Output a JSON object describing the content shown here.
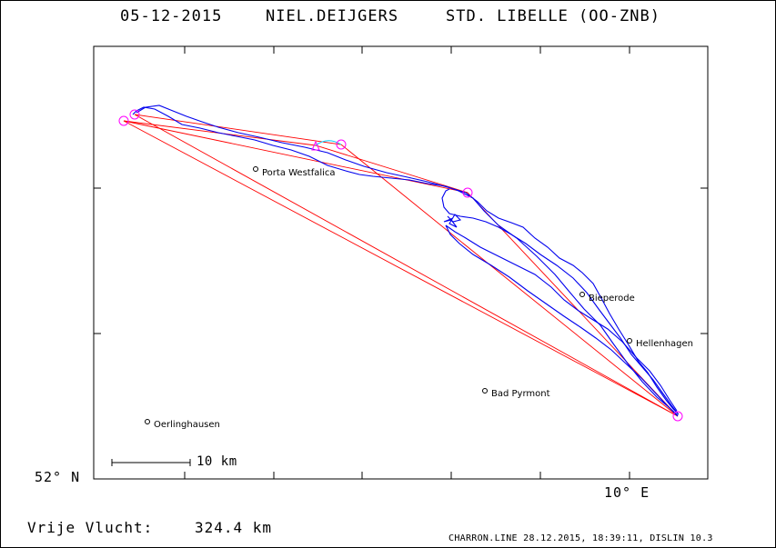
{
  "header": {
    "date": "05-12-2015",
    "pilot": "NIEL.DEIJGERS",
    "glider": "STD. LIBELLE (OO-ZNB)"
  },
  "axes": {
    "lat_label": "52° N",
    "lon_label": "10° E"
  },
  "places": [
    {
      "name": "Porta Westfalica"
    },
    {
      "name": "Bieperode"
    },
    {
      "name": "Hellenhagen"
    },
    {
      "name": "Bad Pyrmont"
    },
    {
      "name": "Oerlinghausen"
    }
  ],
  "scale_bar": {
    "label": "10 km"
  },
  "footer": {
    "distance_label": "Vrije Vlucht:",
    "distance_value": "324.4 km",
    "credits": "CHARRON.LINE 28.12.2015, 18:39:11, DISLIN 10.3"
  },
  "colors": {
    "frame": "#000000",
    "track": "#0000ff",
    "course": "#ff0000",
    "turnpoint": "#ff00ff",
    "final_glide": "#00ccff"
  }
}
